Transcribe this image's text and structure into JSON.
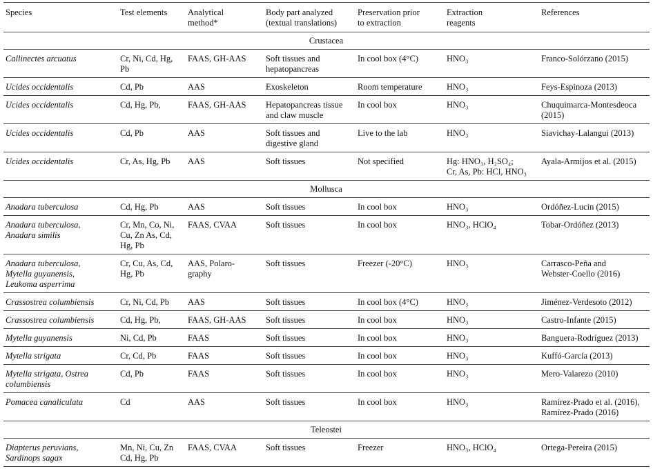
{
  "table": {
    "header": [
      [
        "Species"
      ],
      [
        "Test elements"
      ],
      [
        "Analytical",
        "method*"
      ],
      [
        "Body part analyzed",
        "(textual translations)"
      ],
      [
        "Preservation prior",
        "to extraction"
      ],
      [
        "Extraction",
        "reagents"
      ],
      [
        "References"
      ]
    ],
    "rows": [
      {
        "group": "Crustacea"
      },
      {
        "cells": [
          [
            "Callinectes arcuatus"
          ],
          [
            "Cr, Ni, Cd, Hg,",
            "Pb"
          ],
          [
            "FAAS, GH-AAS"
          ],
          [
            "Soft tissues and",
            "hepatopancreas"
          ],
          [
            "In cool box (4°C)"
          ],
          [
            "HNO₃"
          ],
          [
            "Franco-Solórzano (2015)"
          ]
        ]
      },
      {
        "cells": [
          [
            "Ucides occidentalis"
          ],
          [
            "Cd, Pb"
          ],
          [
            "AAS"
          ],
          [
            "Exoskeleton"
          ],
          [
            "Room temperature"
          ],
          [
            "HNO₃"
          ],
          [
            "Feys-Espinoza (2013)"
          ]
        ]
      },
      {
        "cells": [
          [
            "Ucides occidentalis"
          ],
          [
            "Cd, Hg, Pb,"
          ],
          [
            "FAAS, GH-AAS"
          ],
          [
            "Hepatopancreas tissue",
            "and claw muscle"
          ],
          [
            "In cool box"
          ],
          [
            "HNO₃"
          ],
          [
            "Chuquimarca-Montesdeoca",
            "(2015)"
          ]
        ]
      },
      {
        "cells": [
          [
            "Ucides occidentalis"
          ],
          [
            "Cd, Pb"
          ],
          [
            "AAS"
          ],
          [
            "Soft tissues and",
            "digestive gland"
          ],
          [
            "Live to the lab"
          ],
          [
            "HNO₃"
          ],
          [
            "Siavichay-Lalangui (2013)"
          ]
        ]
      },
      {
        "cells": [
          [
            "Ucides occidentalis"
          ],
          [
            "Cr, As, Hg, Pb"
          ],
          [
            "AAS"
          ],
          [
            "Soft tissues"
          ],
          [
            "Not specified"
          ],
          [
            "Hg: HNO₃, H₂SO₄;",
            "Cr, As, Pb: HCl, HNO₃"
          ],
          [
            "Ayala-Armijos et al. (2015)"
          ]
        ]
      },
      {
        "group": "Mollusca"
      },
      {
        "cells": [
          [
            "Anadara tuberculosa"
          ],
          [
            "Cd, Hg, Pb"
          ],
          [
            "AAS"
          ],
          [
            "Soft tissues"
          ],
          [
            "In cool box"
          ],
          [
            "HNO₃"
          ],
          [
            "Ordóñez-Lucin (2015)"
          ]
        ]
      },
      {
        "cells": [
          [
            "Anadara tuberculosa,",
            " Anadara similis"
          ],
          [
            "Cr, Mn, Co, Ni,",
            "Cu, Zn As, Cd,",
            "Hg, Pb"
          ],
          [
            "FAAS, CVAA"
          ],
          [
            "Soft tissues"
          ],
          [
            "In cool box"
          ],
          [
            "HNO₃, HClO₄"
          ],
          [
            "Tobar-Ordóñez (2013)"
          ]
        ]
      },
      {
        "cells": [
          [
            "Anadara tuberculosa,",
            "Mytella guyanensis,",
            "Leukoma asperrima"
          ],
          [
            "Cr, Cu, As, Cd,",
            "Hg, Pb"
          ],
          [
            "AAS, Polaro-",
            "graphy"
          ],
          [
            "Soft tissues"
          ],
          [
            "Freezer (-20°C)"
          ],
          [
            "HNO₃"
          ],
          [
            "Carrasco-Peña and",
            "Webster-Coello (2016)"
          ]
        ]
      },
      {
        "cells": [
          [
            "Crassostrea columbiensis"
          ],
          [
            "Cr, Ni, Cd, Pb"
          ],
          [
            "AAS"
          ],
          [
            "Soft tissues"
          ],
          [
            "In cool box (4°C)"
          ],
          [
            "HNO₃"
          ],
          [
            "Jiménez-Verdesoto (2012)"
          ]
        ]
      },
      {
        "cells": [
          [
            "Crassostrea columbiensis"
          ],
          [
            "Cd, Hg, Pb,"
          ],
          [
            "FAAS, GH-AAS"
          ],
          [
            "Soft tissues"
          ],
          [
            "In cool box"
          ],
          [
            "HNO₃"
          ],
          [
            "Castro-Infante (2015)"
          ]
        ]
      },
      {
        "cells": [
          [
            "Mytella guyanensis"
          ],
          [
            "Ni, Cd, Pb"
          ],
          [
            "FAAS"
          ],
          [
            "Soft tissues"
          ],
          [
            "In cool box"
          ],
          [
            "HNO₃"
          ],
          [
            "Banguera-Rodríguez (2013)"
          ]
        ]
      },
      {
        "cells": [
          [
            "Mytella strigata"
          ],
          [
            "Cr, Cd, Pb"
          ],
          [
            "FAAS"
          ],
          [
            "Soft tissues"
          ],
          [
            "In cool box"
          ],
          [
            "HNO₃"
          ],
          [
            "Kuffó-García (2013)"
          ]
        ]
      },
      {
        "cells": [
          [
            "Mytella strigata, Ostrea",
            "columbiensis"
          ],
          [
            "Cd, Pb"
          ],
          [
            "FAAS"
          ],
          [
            "Soft tissues"
          ],
          [
            "In cool box"
          ],
          [
            "HNO₃"
          ],
          [
            "Mero-Valarezo (2010)"
          ]
        ]
      },
      {
        "cells": [
          [
            "Pomacea canaliculata"
          ],
          [
            "Cd"
          ],
          [
            "AAS"
          ],
          [
            "Soft tissues"
          ],
          [
            "In cool box"
          ],
          [
            "HNO₃"
          ],
          [
            "Ramírez-Prado et al. (2016),",
            "Ramírez-Prado (2016)"
          ]
        ]
      },
      {
        "group": "Teleostei"
      },
      {
        "cells": [
          [
            "Diapterus peruvians,",
            "Sardinops sagax"
          ],
          [
            "Mn, Ni, Cu, Zn",
            "Cd, Hg, Pb"
          ],
          [
            "FAAS, CVAA"
          ],
          [
            "Soft tissues"
          ],
          [
            "Freezer"
          ],
          [
            "HNO₃, HClO₄"
          ],
          [
            "Ortega-Pereira (2015)"
          ]
        ]
      }
    ]
  }
}
